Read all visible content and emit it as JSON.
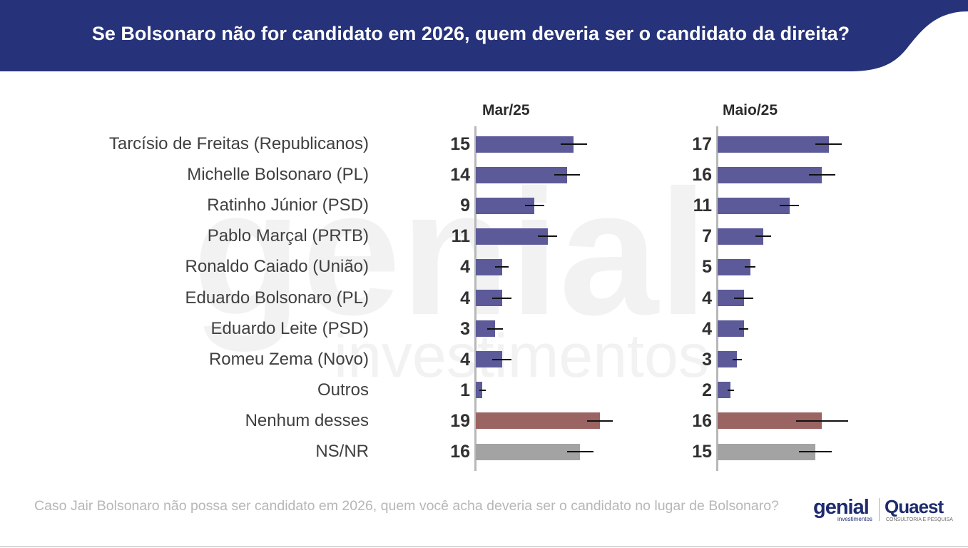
{
  "title": "Se Bolsonaro não for candidato em 2026, quem deveria ser o candidato da direita?",
  "question": "Caso Jair Bolsonaro não possa ser candidato em 2026, quem você acha deveria ser o candidato no lugar de Bolsonaro?",
  "logos": {
    "genial": "genial",
    "genial_sub": "investimentos",
    "quaest": "Quaest",
    "quaest_sub": "CONSULTORIA E PESQUISA"
  },
  "watermark": {
    "big": "genial",
    "small": "investimentos"
  },
  "colors": {
    "header": "#26337a",
    "candidate": "#5c5a98",
    "nenhum": "#9a6462",
    "nsnr": "#a3a3a3",
    "watermark": "#f2f2f2"
  },
  "chart_data": {
    "type": "bar",
    "orientation": "horizontal",
    "categories": [
      "Tarcísio de Freitas (Republicanos)",
      "Michelle Bolsonaro (PL)",
      "Ratinho Júnior (PSD)",
      "Pablo Marçal (PRTB)",
      "Ronaldo Caiado (União)",
      "Eduardo Bolsonaro (PL)",
      "Eduardo Leite (PSD)",
      "Romeu Zema (Novo)",
      "Outros",
      "Nenhum desses",
      "NS/NR"
    ],
    "category_colors": [
      "#5c5a98",
      "#5c5a98",
      "#5c5a98",
      "#5c5a98",
      "#5c5a98",
      "#5c5a98",
      "#5c5a98",
      "#5c5a98",
      "#5c5a98",
      "#9a6462",
      "#a3a3a3"
    ],
    "series": [
      {
        "name": "Mar/25",
        "values": [
          15,
          14,
          9,
          11,
          4,
          4,
          3,
          4,
          1,
          19,
          16
        ],
        "error_margin": [
          2,
          2,
          1.5,
          1.5,
          1,
          1.5,
          1.2,
          1.5,
          0.5,
          2,
          2
        ]
      },
      {
        "name": "Maio/25",
        "values": [
          17,
          16,
          11,
          7,
          5,
          4,
          4,
          3,
          2,
          16,
          15
        ],
        "error_margin": [
          2,
          2,
          1.5,
          1.2,
          0.8,
          1.5,
          0.7,
          0.7,
          0.5,
          4,
          2.5
        ]
      }
    ],
    "xlim": [
      0,
      21.8
    ],
    "grid": false,
    "legend": "none"
  }
}
